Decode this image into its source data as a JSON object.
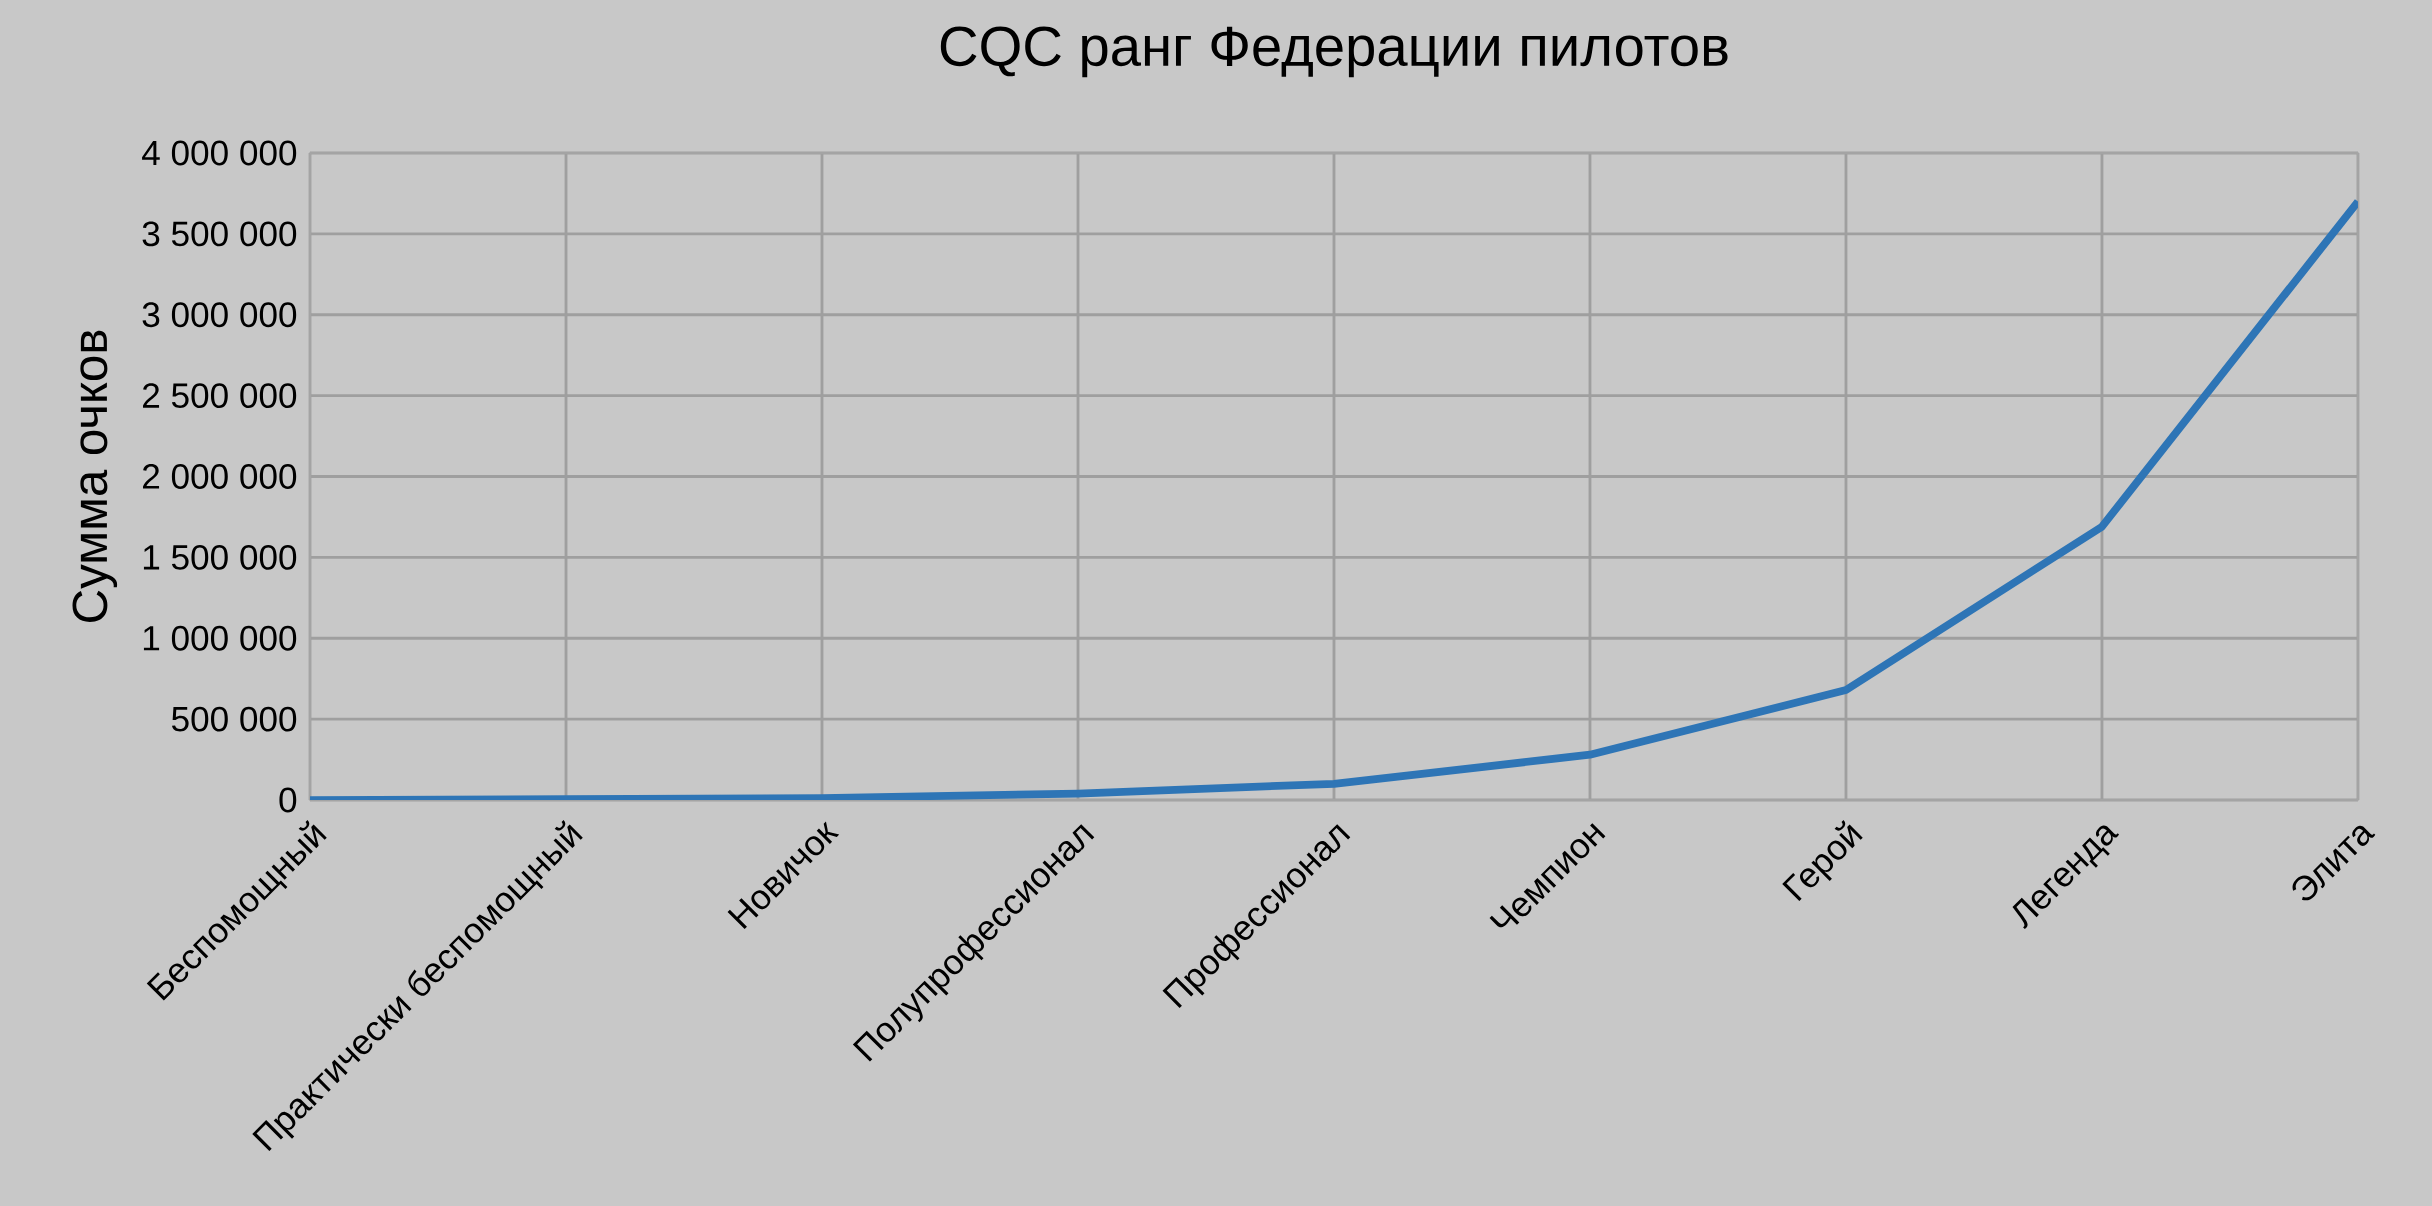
{
  "chart_data": {
    "type": "line",
    "title": "CQC ранг Федерации пилотов",
    "ylabel": "Сумма очков",
    "categories": [
      "Беспомощный",
      "Практически беспомощный",
      "Новичок",
      "Полупрофессионал",
      "Профессионал",
      "Чемпион",
      "Герой",
      "Легенда",
      "Элита"
    ],
    "series": [
      {
        "color": "#2e75b6",
        "values": [
          0,
          5000,
          12000,
          40000,
          100000,
          280000,
          680000,
          1690000,
          3700000
        ]
      }
    ],
    "ylim": [
      0,
      4000000
    ],
    "yticks": [
      {
        "value": 0,
        "label": "0"
      },
      {
        "value": 500000,
        "label": "500 000"
      },
      {
        "value": 1000000,
        "label": "1 000 000"
      },
      {
        "value": 1500000,
        "label": "1 500 000"
      },
      {
        "value": 2000000,
        "label": "2 000 000"
      },
      {
        "value": 2500000,
        "label": "2 500 000"
      },
      {
        "value": 3000000,
        "label": "3 000 000"
      },
      {
        "value": 3500000,
        "label": "3 500 000"
      },
      {
        "value": 4000000,
        "label": "4 000 000"
      }
    ],
    "grid": true,
    "marker": "none",
    "line_style": "solid"
  }
}
